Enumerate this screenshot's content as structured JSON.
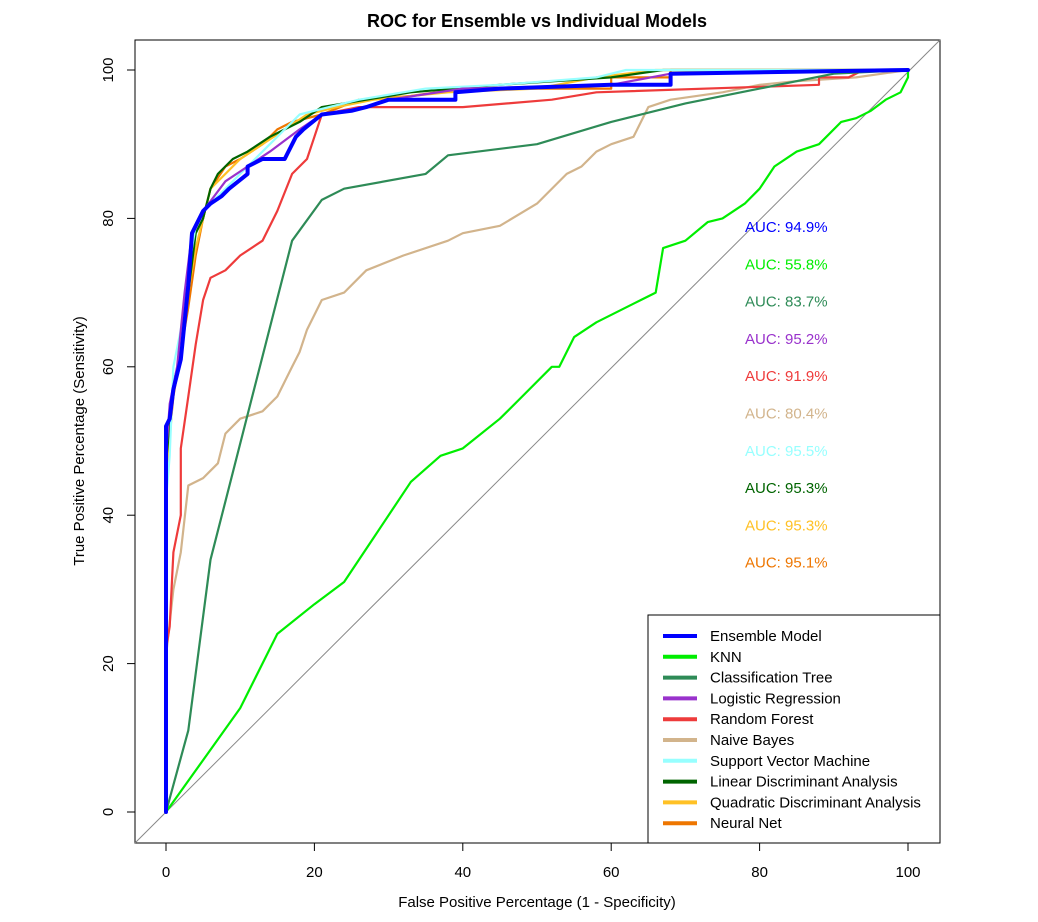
{
  "chart_data": {
    "type": "line",
    "title": "ROC for Ensemble vs Individual Models",
    "xlabel": "False Positive Percentage (1 - Specificity)",
    "ylabel": "True Positive Percentage (Sensitivity)",
    "xlim": [
      0,
      100
    ],
    "ylim": [
      0,
      100
    ],
    "x_ticks": [
      0,
      20,
      40,
      60,
      80,
      100
    ],
    "y_ticks": [
      0,
      20,
      40,
      60,
      80,
      100
    ],
    "grid": false,
    "diagonal_reference": true,
    "legend_position": "bottom-right",
    "series": [
      {
        "name": "Ensemble Model",
        "color": "#0000FF",
        "auc": "AUC: 94.9%",
        "points": [
          [
            0,
            0
          ],
          [
            0,
            52
          ],
          [
            0.5,
            53
          ],
          [
            1,
            57
          ],
          [
            2,
            61
          ],
          [
            3,
            71
          ],
          [
            3.5,
            78
          ],
          [
            5,
            81
          ],
          [
            6,
            82
          ],
          [
            7.5,
            83
          ],
          [
            8.5,
            84
          ],
          [
            11,
            86
          ],
          [
            11,
            87
          ],
          [
            13,
            88
          ],
          [
            16,
            88
          ],
          [
            16.5,
            89
          ],
          [
            17.5,
            91
          ],
          [
            18.5,
            92
          ],
          [
            21,
            94
          ],
          [
            25,
            94.5
          ],
          [
            27,
            95
          ],
          [
            30,
            96
          ],
          [
            39,
            96
          ],
          [
            39,
            97
          ],
          [
            45,
            97.5
          ],
          [
            60,
            98
          ],
          [
            68,
            98
          ],
          [
            68,
            99.5
          ],
          [
            100,
            100
          ]
        ]
      },
      {
        "name": "KNN",
        "color": "#00EE00",
        "auc": "AUC: 55.8%",
        "points": [
          [
            0,
            0
          ],
          [
            5,
            7
          ],
          [
            10,
            14
          ],
          [
            15,
            24
          ],
          [
            20,
            28
          ],
          [
            24,
            31
          ],
          [
            28,
            37
          ],
          [
            33,
            44.5
          ],
          [
            37,
            48
          ],
          [
            40,
            49
          ],
          [
            45,
            53
          ],
          [
            48,
            56
          ],
          [
            52,
            60
          ],
          [
            53,
            60
          ],
          [
            55,
            64
          ],
          [
            58,
            66
          ],
          [
            64,
            69
          ],
          [
            66,
            70
          ],
          [
            67,
            76
          ],
          [
            70,
            77
          ],
          [
            73,
            79.5
          ],
          [
            75,
            80
          ],
          [
            78,
            82
          ],
          [
            80,
            84
          ],
          [
            82,
            87
          ],
          [
            85,
            89
          ],
          [
            88,
            90
          ],
          [
            91,
            93
          ],
          [
            93,
            93.5
          ],
          [
            95,
            94.5
          ],
          [
            97,
            96
          ],
          [
            99,
            97
          ],
          [
            100,
            99
          ],
          [
            100,
            100
          ]
        ]
      },
      {
        "name": "Classification Tree",
        "color": "#2E8B57",
        "auc": "AUC: 83.7%",
        "points": [
          [
            0,
            0
          ],
          [
            3,
            11
          ],
          [
            6,
            34
          ],
          [
            17,
            77
          ],
          [
            21,
            82.5
          ],
          [
            24,
            84
          ],
          [
            35,
            86
          ],
          [
            38,
            88.5
          ],
          [
            50,
            90
          ],
          [
            60,
            93
          ],
          [
            70,
            95.5
          ],
          [
            80,
            97.5
          ],
          [
            90,
            99.5
          ],
          [
            100,
            100
          ]
        ]
      },
      {
        "name": "Logistic Regression",
        "color": "#9932CC",
        "auc": "AUC: 95.2%",
        "points": [
          [
            0,
            0
          ],
          [
            0,
            48
          ],
          [
            0.5,
            55
          ],
          [
            1.5,
            60
          ],
          [
            2.5,
            70
          ],
          [
            3.5,
            78
          ],
          [
            5,
            81
          ],
          [
            8,
            85
          ],
          [
            11,
            87
          ],
          [
            14,
            89
          ],
          [
            18,
            92
          ],
          [
            21,
            94
          ],
          [
            27,
            95
          ],
          [
            30,
            96
          ],
          [
            40,
            97.5
          ],
          [
            60,
            98
          ],
          [
            68,
            99.5
          ],
          [
            100,
            100
          ]
        ]
      },
      {
        "name": "Random Forest",
        "color": "#EE3B3B",
        "auc": "AUC: 91.9%",
        "points": [
          [
            0,
            0
          ],
          [
            0,
            22
          ],
          [
            0.5,
            25
          ],
          [
            1,
            35
          ],
          [
            2,
            40
          ],
          [
            2,
            49
          ],
          [
            3,
            56
          ],
          [
            4,
            63
          ],
          [
            5,
            69
          ],
          [
            6,
            72
          ],
          [
            8,
            73
          ],
          [
            10,
            75
          ],
          [
            13,
            77
          ],
          [
            15,
            81
          ],
          [
            17,
            86
          ],
          [
            19,
            88
          ],
          [
            20,
            91
          ],
          [
            21,
            94
          ],
          [
            26,
            95
          ],
          [
            30,
            95
          ],
          [
            40,
            95
          ],
          [
            52,
            96
          ],
          [
            58,
            97
          ],
          [
            88,
            98
          ],
          [
            88,
            99
          ],
          [
            92,
            99
          ],
          [
            94,
            100
          ]
        ]
      },
      {
        "name": "Naive Bayes",
        "color": "#D2B48C",
        "auc": "AUC: 80.4%",
        "points": [
          [
            0,
            0
          ],
          [
            0,
            21
          ],
          [
            1,
            30
          ],
          [
            2,
            35
          ],
          [
            3,
            44
          ],
          [
            5,
            45
          ],
          [
            6,
            46
          ],
          [
            7,
            47
          ],
          [
            8,
            51
          ],
          [
            10,
            53
          ],
          [
            13,
            54
          ],
          [
            15,
            56
          ],
          [
            16,
            58
          ],
          [
            17,
            60
          ],
          [
            18,
            62
          ],
          [
            19,
            65
          ],
          [
            20,
            67
          ],
          [
            21,
            69
          ],
          [
            24,
            70
          ],
          [
            27,
            73
          ],
          [
            32,
            75
          ],
          [
            38,
            77
          ],
          [
            40,
            78
          ],
          [
            45,
            79
          ],
          [
            50,
            82
          ],
          [
            54,
            86
          ],
          [
            56,
            87
          ],
          [
            58,
            89
          ],
          [
            60,
            90
          ],
          [
            63,
            91
          ],
          [
            65,
            95
          ],
          [
            68,
            96
          ],
          [
            75,
            97
          ],
          [
            80,
            98
          ],
          [
            85,
            98.5
          ],
          [
            93,
            99
          ],
          [
            100,
            100
          ]
        ]
      },
      {
        "name": "Support Vector Machine",
        "color": "#97FFFF",
        "auc": "AUC: 95.5%",
        "points": [
          [
            0,
            0
          ],
          [
            0,
            42
          ],
          [
            0.5,
            48
          ],
          [
            1,
            60
          ],
          [
            2,
            65
          ],
          [
            3,
            73
          ],
          [
            4,
            79
          ],
          [
            5,
            81
          ],
          [
            6,
            82
          ],
          [
            8,
            84
          ],
          [
            10,
            86
          ],
          [
            12,
            88
          ],
          [
            14,
            90
          ],
          [
            16,
            92
          ],
          [
            18,
            94
          ],
          [
            22,
            95
          ],
          [
            26,
            96
          ],
          [
            35,
            97.5
          ],
          [
            45,
            98
          ],
          [
            58,
            99
          ],
          [
            62,
            100
          ],
          [
            100,
            100
          ]
        ]
      },
      {
        "name": "Linear Discriminant Analysis",
        "color": "#006400",
        "auc": "AUC: 95.3%",
        "points": [
          [
            0,
            0
          ],
          [
            0,
            47
          ],
          [
            1,
            58
          ],
          [
            2,
            61
          ],
          [
            2.5,
            66
          ],
          [
            3.5,
            74
          ],
          [
            4,
            78
          ],
          [
            5,
            80
          ],
          [
            6,
            84
          ],
          [
            7,
            86
          ],
          [
            9,
            88
          ],
          [
            11,
            89
          ],
          [
            14,
            91
          ],
          [
            18,
            93
          ],
          [
            21,
            95
          ],
          [
            27,
            96
          ],
          [
            33,
            97
          ],
          [
            45,
            98
          ],
          [
            60,
            99
          ],
          [
            67,
            100
          ],
          [
            100,
            100
          ]
        ]
      },
      {
        "name": "Quadratic Discriminant Analysis",
        "color": "#FFC125",
        "auc": "AUC: 95.3%",
        "points": [
          [
            0,
            0
          ],
          [
            0,
            44
          ],
          [
            0.5,
            50
          ],
          [
            1,
            57
          ],
          [
            2,
            62
          ],
          [
            3,
            70
          ],
          [
            4,
            76
          ],
          [
            5,
            80
          ],
          [
            6,
            84
          ],
          [
            8,
            86
          ],
          [
            10,
            88
          ],
          [
            13,
            90
          ],
          [
            16,
            92
          ],
          [
            19,
            94
          ],
          [
            23,
            95
          ],
          [
            28,
            96
          ],
          [
            38,
            97
          ],
          [
            50,
            97.5
          ],
          [
            58,
            99
          ],
          [
            66,
            100
          ],
          [
            100,
            100
          ]
        ]
      },
      {
        "name": "Neural Net",
        "color": "#EE7600",
        "auc": "AUC: 95.1%",
        "points": [
          [
            0,
            0
          ],
          [
            0,
            45
          ],
          [
            0.5,
            51
          ],
          [
            1,
            56
          ],
          [
            2,
            62
          ],
          [
            3,
            68
          ],
          [
            4,
            75
          ],
          [
            5,
            80
          ],
          [
            6,
            84
          ],
          [
            8,
            87
          ],
          [
            10,
            88
          ],
          [
            13,
            90
          ],
          [
            15,
            92
          ],
          [
            17,
            93
          ],
          [
            21,
            94
          ],
          [
            26,
            96
          ],
          [
            33,
            96.5
          ],
          [
            40,
            97.5
          ],
          [
            60,
            97.5
          ],
          [
            60,
            99
          ],
          [
            68,
            99
          ],
          [
            68,
            100
          ],
          [
            100,
            100
          ]
        ]
      }
    ]
  }
}
